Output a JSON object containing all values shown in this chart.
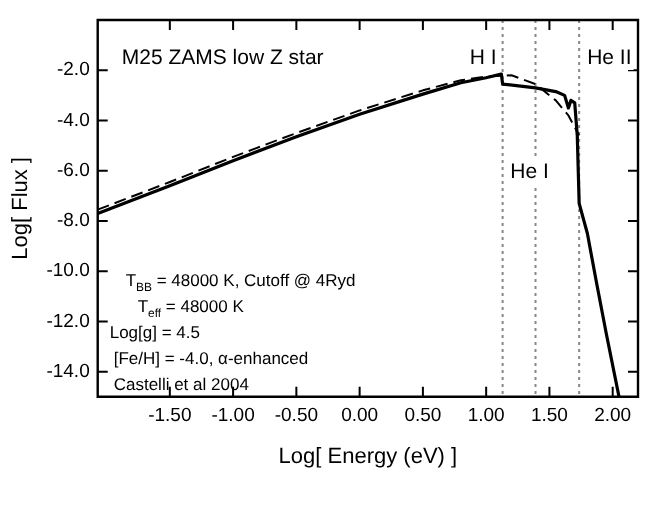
{
  "chart_data": {
    "type": "line",
    "title": "M25 ZAMS low Z star",
    "xlabel": "Log[ Energy (eV) ]",
    "ylabel": "Log[ Flux ]",
    "series": [
      {
        "color": "#000000",
        "line_style": "solid",
        "x": [
          -2.07,
          -1.5,
          -1.0,
          -0.5,
          0,
          0.5,
          0.8,
          1.0,
          1.12,
          1.13,
          1.39,
          1.55,
          1.62,
          1.65,
          1.67,
          1.7,
          1.72,
          1.735,
          1.8,
          1.87,
          1.95,
          2.05
        ],
        "values": [
          -7.7,
          -6.6,
          -5.6,
          -4.65,
          -3.75,
          -2.95,
          -2.5,
          -2.3,
          -2.15,
          -2.55,
          -2.7,
          -2.85,
          -3.0,
          -3.5,
          -3.2,
          -3.3,
          -4.6,
          -7.3,
          -8.5,
          -10.4,
          -12.5,
          -15.0
        ]
      },
      {
        "color": "#000000",
        "line_style": "dashed",
        "x": [
          -2.07,
          -1.5,
          -1.0,
          -0.5,
          0,
          0.5,
          0.8,
          1.0,
          1.2,
          1.39,
          1.55,
          1.65,
          1.735
        ],
        "values": [
          -7.55,
          -6.45,
          -5.45,
          -4.5,
          -3.6,
          -2.8,
          -2.4,
          -2.25,
          -2.2,
          -2.55,
          -3.2,
          -3.8,
          -4.6
        ]
      }
    ],
    "xlim": [
      -2.07,
      2.2
    ],
    "xticks": [
      {
        "value": -1.5,
        "label": "-1.50"
      },
      {
        "value": -1,
        "label": "-1.00"
      },
      {
        "value": -0.5,
        "label": "-0.50"
      },
      {
        "value": 0,
        "label": "0.00"
      },
      {
        "value": 0.5,
        "label": "0.50"
      },
      {
        "value": 1,
        "label": "1.00"
      },
      {
        "value": 1.5,
        "label": "1.50"
      },
      {
        "value": 2,
        "label": "2.00"
      }
    ],
    "ylim": [
      -15,
      0
    ],
    "yticks": [
      {
        "value": -2,
        "label": "-2.0"
      },
      {
        "value": -4,
        "label": "-4.0"
      },
      {
        "value": -6,
        "label": "-6.0"
      },
      {
        "value": -8,
        "label": "-8.0"
      },
      {
        "value": -10,
        "label": "-10.0"
      },
      {
        "value": -12,
        "label": "-12.0"
      },
      {
        "value": -14,
        "label": "-14.0"
      }
    ],
    "ref_lines": [
      {
        "axis": "x",
        "value": 1.13,
        "label": "H I",
        "color": "#888888",
        "line_style": "dotted"
      },
      {
        "axis": "x",
        "value": 1.39,
        "label": "He I",
        "color": "#888888",
        "line_style": "dotted"
      },
      {
        "axis": "x",
        "value": 1.735,
        "label": "He II",
        "color": "#888888",
        "line_style": "dotted"
      }
    ],
    "annotations": [
      "T$_{BB}$ = 48000 K, Cutoff @ 4Ryd",
      "T$_{eff}$ = 48000 K",
      "Log[g] = 4.5",
      "[Fe/H] = -4.0, α-enhanced",
      "Castelli et al 2004"
    ],
    "grid": false,
    "legend": false,
    "marker": "none"
  }
}
